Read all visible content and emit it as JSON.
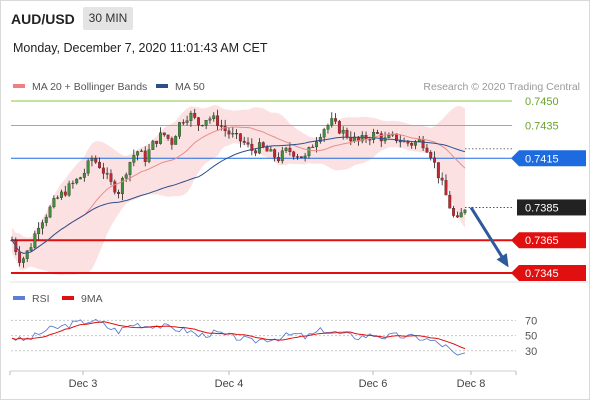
{
  "header": {
    "symbol": "AUD/USD",
    "timeframe": "30 MIN",
    "datetime": "Monday, December 7, 2020 11:01:43 AM CET"
  },
  "chart_data": {
    "type": "candlestick",
    "legend": [
      {
        "label": "MA 20 + Bollinger Bands",
        "color": "#f08080"
      },
      {
        "label": "MA 50",
        "color": "#2c4f8c"
      }
    ],
    "credit": "Research © 2020 Trading Central",
    "ylim": [
      0.73395,
      0.74518
    ],
    "x_ticks": [
      "Dec 3",
      "Dec 4",
      "Dec 6",
      "Dec 8"
    ],
    "levels": [
      {
        "value": 0.745,
        "label": "0.7450",
        "color": "#8dc63f",
        "style": "target"
      },
      {
        "value": 0.7435,
        "label": "0.7435",
        "color": "#8dc63f",
        "style": "target"
      },
      {
        "value": 0.7415,
        "label": "0.7415",
        "color": "#1e6be0",
        "style": "pivot"
      },
      {
        "value": 0.7385,
        "label": "0.7385",
        "color": "#222222",
        "style": "price"
      },
      {
        "value": 0.7365,
        "label": "0.7365",
        "color": "#e01010",
        "style": "support"
      },
      {
        "value": 0.7345,
        "label": "0.7345",
        "color": "#e01010",
        "style": "support"
      }
    ],
    "forecast_arrow": {
      "from_price": 0.7385,
      "to_price": 0.735,
      "color": "#2c5a9c"
    },
    "price_path": [
      0.7365,
      0.7352,
      0.736,
      0.7375,
      0.7382,
      0.739,
      0.7395,
      0.74,
      0.7405,
      0.7415,
      0.741,
      0.74,
      0.7395,
      0.741,
      0.742,
      0.7415,
      0.7425,
      0.743,
      0.7425,
      0.7438,
      0.7442,
      0.7436,
      0.744,
      0.7438,
      0.7432,
      0.7428,
      0.7425,
      0.742,
      0.7422,
      0.7418,
      0.7415,
      0.742,
      0.7418,
      0.7415,
      0.7425,
      0.7433,
      0.7437,
      0.7432,
      0.7428,
      0.7425,
      0.7428,
      0.743,
      0.7426,
      0.7428,
      0.7425,
      0.7424,
      0.7426,
      0.742,
      0.7405,
      0.739,
      0.7375,
      0.7385
    ],
    "rsi": {
      "legend": [
        {
          "label": "RSI",
          "color": "#5a7fd6"
        },
        {
          "label": "9MA",
          "color": "#e01010"
        }
      ],
      "ylim": [
        10,
        85
      ],
      "levels": [
        70,
        50,
        30
      ],
      "level_labels": [
        "70",
        "50",
        "30"
      ],
      "path": [
        48,
        44,
        46,
        52,
        58,
        60,
        63,
        66,
        68,
        70,
        66,
        60,
        56,
        62,
        66,
        63,
        64,
        62,
        60,
        58,
        56,
        50,
        52,
        54,
        50,
        48,
        46,
        42,
        45,
        46,
        47,
        50,
        52,
        48,
        52,
        58,
        55,
        52,
        50,
        48,
        50,
        51,
        48,
        50,
        49,
        48,
        47,
        44,
        40,
        35,
        22,
        27
      ]
    }
  }
}
